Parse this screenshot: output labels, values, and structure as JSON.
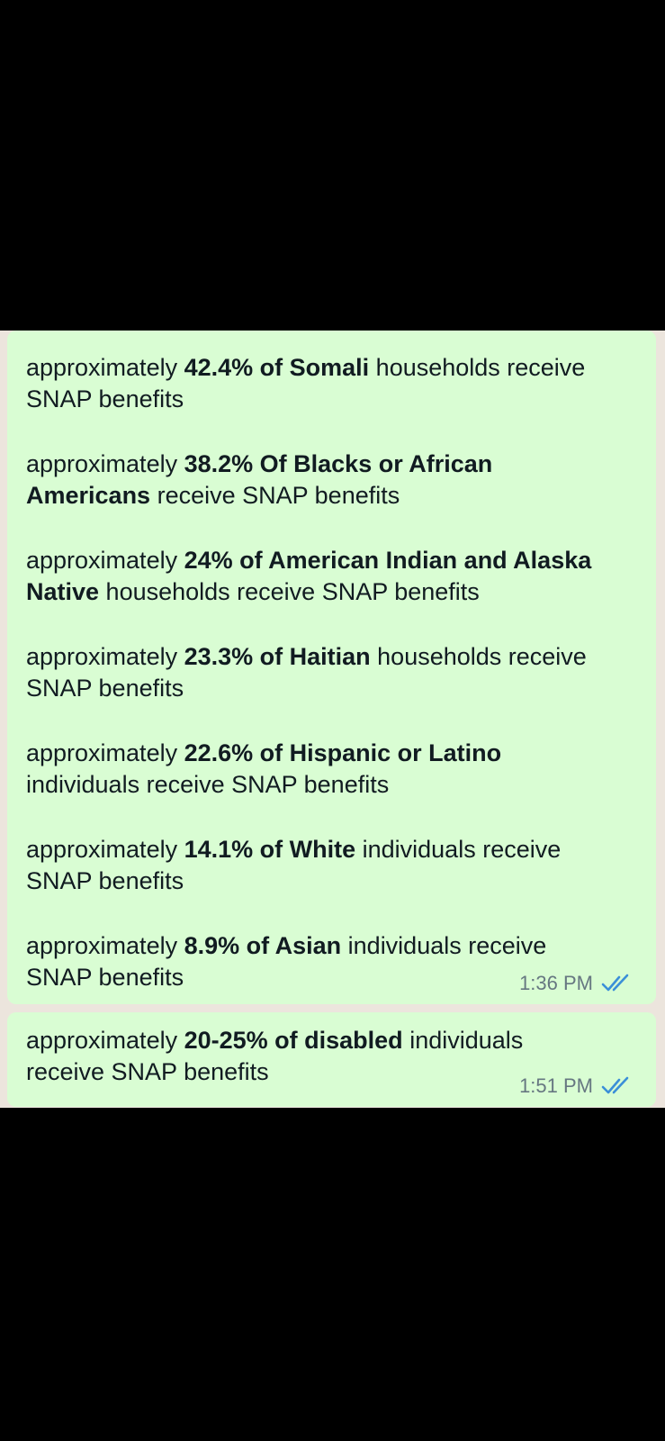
{
  "messages": [
    {
      "lines": [
        {
          "pre": "approximately ",
          "bold": "42.4% of Somali",
          "post": " households receive",
          "line2_pre": "",
          "line2_bold": "",
          "line2_post": "SNAP benefits"
        },
        {
          "pre": "approximately ",
          "bold": "38.2% Of Blacks or African",
          "post": "",
          "line2_pre": "",
          "line2_bold": "Americans",
          "line2_post": " receive SNAP benefits"
        },
        {
          "pre": "approximately ",
          "bold": "24% of American Indian and Alaska",
          "post": "",
          "line2_pre": "",
          "line2_bold": "Native",
          "line2_post": " households receive SNAP benefits"
        },
        {
          "pre": "approximately ",
          "bold": "23.3% of Haitian",
          "post": " households receive",
          "line2_pre": "",
          "line2_bold": "",
          "line2_post": "SNAP benefits"
        },
        {
          "pre": "approximately ",
          "bold": "22.6% of Hispanic or Latino",
          "post": "",
          "line2_pre": "",
          "line2_bold": "",
          "line2_post": "individuals receive SNAP benefits"
        },
        {
          "pre": "approximately ",
          "bold": "14.1% of White",
          "post": " individuals receive",
          "line2_pre": "",
          "line2_bold": "",
          "line2_post": "SNAP benefits"
        },
        {
          "pre": "approximately ",
          "bold": "8.9% of Asian",
          "post": " individuals receive",
          "line2_pre": "",
          "line2_bold": "",
          "line2_post": "SNAP benefits"
        }
      ],
      "time": "1:36 PM",
      "status_icon": "double-check-read-icon"
    },
    {
      "lines": [
        {
          "pre": "approximately ",
          "bold": "20-25% of disabled",
          "post": " individuals",
          "line2_pre": "",
          "line2_bold": "",
          "line2_post": "receive SNAP benefits"
        }
      ],
      "time": "1:51 PM",
      "status_icon": "double-check-read-icon"
    }
  ],
  "colors": {
    "bubble": "#d9fdd3",
    "chat_background": "#ece5dd",
    "text": "#111b21",
    "meta": "#667781",
    "read_ticks": "#3b8fd8"
  }
}
